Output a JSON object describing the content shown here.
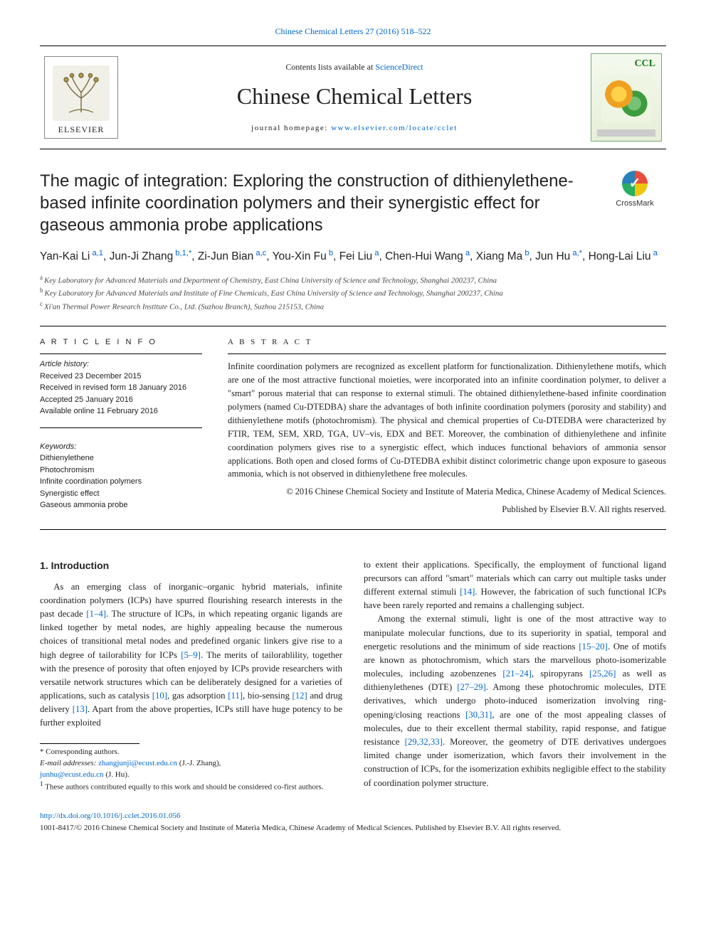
{
  "top_link": {
    "prefix": "",
    "journal": "Chinese Chemical Letters 27 (2016) 518–522"
  },
  "masthead": {
    "contents_prefix": "Contents lists available at ",
    "contents_link": "ScienceDirect",
    "journal_name": "Chinese Chemical Letters",
    "homepage_prefix": "journal homepage: ",
    "homepage_url": "www.elsevier.com/locate/cclet",
    "elsevier_word": "ELSEVIER",
    "cover_label": "CCL"
  },
  "crossmark_label": "CrossMark",
  "article": {
    "title": "The magic of integration: Exploring the construction of dithienylethene-based infinite coordination polymers and their synergistic effect for gaseous ammonia probe applications",
    "authors_html": "Yan-Kai Li<span class='affil-sup'> a,1</span>, Jun-Ji Zhang<span class='affil-sup'> b,1,*</span>, Zi-Jun Bian<span class='affil-sup'> a,c</span>, You-Xin Fu<span class='affil-sup'> b</span>, Fei Liu<span class='affil-sup'> a</span>, Chen-Hui Wang<span class='affil-sup'> a</span>, Xiang Ma<span class='affil-sup'> b</span>, Jun Hu<span class='affil-sup'> a,*</span>, Hong-Lai Liu<span class='affil-sup'> a</span>",
    "affiliations": [
      {
        "sup": "a",
        "text": "Key Laboratory for Advanced Materials and Department of Chemistry, East China University of Science and Technology, Shanghai 200237, China"
      },
      {
        "sup": "b",
        "text": "Key Laboratory for Advanced Materials and Institute of Fine Chemicals, East China University of Science and Technology, Shanghai 200237, China"
      },
      {
        "sup": "c",
        "text": "Xi'an Thermal Power Research Institute Co., Ltd. (Suzhou Branch), Suzhou 215153, China"
      }
    ]
  },
  "info": {
    "heading": "A R T I C L E   I N F O",
    "history_label": "Article history:",
    "history": [
      "Received 23 December 2015",
      "Received in revised form 18 January 2016",
      "Accepted 25 January 2016",
      "Available online 11 February 2016"
    ],
    "keywords_label": "Keywords:",
    "keywords": [
      "Dithienylethene",
      "Photochromism",
      "Infinite coordination polymers",
      "Synergistic effect",
      "Gaseous ammonia probe"
    ]
  },
  "abstract": {
    "heading": "A B S T R A C T",
    "text": "Infinite coordination polymers are recognized as excellent platform for functionalization. Dithienylethene motifs, which are one of the most attractive functional moieties, were incorporated into an infinite coordination polymer, to deliver a \"smart\" porous material that can response to external stimuli. The obtained dithienylethene-based infinite coordination polymers (named Cu-DTEDBA) share the advantages of both infinite coordination polymers (porosity and stability) and dithienylethene motifs (photochromism). The physical and chemical properties of Cu-DTEDBA were characterized by FTIR, TEM, SEM, XRD, TGA, UV–vis, EDX and BET. Moreover, the combination of dithienylethene and infinite coordination polymers gives rise to a synergistic effect, which induces functional behaviors of ammonia sensor applications. Both open and closed forms of Cu-DTEDBA exhibit distinct colorimetric change upon exposure to gaseous ammonia, which is not observed in dithienylethene free molecules.",
    "copyright1": "© 2016 Chinese Chemical Society and Institute of Materia Medica, Chinese Academy of Medical Sciences.",
    "copyright2": "Published by Elsevier B.V. All rights reserved."
  },
  "body": {
    "intro_heading": "1. Introduction",
    "p1_pre": "As an emerging class of inorganic–organic hybrid materials, infinite coordination polymers (ICPs) have spurred flourishing research interests in the past decade ",
    "p1_ref1": "[1–4]",
    "p1_mid": ". The structure of ICPs, in which repeating organic ligands are linked together by metal nodes, are highly appealing because the numerous choices of transitional metal nodes and predefined organic linkers give rise to a high degree of tailorability for ICPs ",
    "p1_ref2": "[5–9]",
    "p1_mid2": ". The merits of tailorablility, together with the presence of porosity that often enjoyed by ICPs provide researchers with versatile network structures which can be deliberately designed for a varieties of applications, such as catalysis ",
    "p1_ref3": "[10]",
    "p1_mid3": ", gas adsorption ",
    "p1_ref4": "[11]",
    "p1_mid4": ", bio-sensing ",
    "p1_ref5": "[12]",
    "p1_mid5": " and drug delivery ",
    "p1_ref6": "[13]",
    "p1_end": ". Apart from the above properties, ICPs still have huge potency to be further exploited",
    "corr_label": "* Corresponding authors.",
    "email_label": "E-mail addresses:",
    "email1": "zhangjunji@ecust.edu.cn",
    "email1_name": " (J.-J. Zhang),",
    "email2": "junhu@ecust.edu.cn",
    "email2_name": " (J. Hu).",
    "note1": "1",
    "note1_text": " These authors contributed equally to this work and should be considered co-first authors.",
    "p2_pre": "to extent their applications. Specifically, the employment of functional ligand precursors can afford \"smart\" materials which can carry out multiple tasks under different external stimuli ",
    "p2_ref1": "[14]",
    "p2_end": ". However, the fabrication of such functional ICPs have been rarely reported and remains a challenging subject.",
    "p3_pre": "Among the external stimuli, light is one of the most attractive way to manipulate molecular functions, due to its superiority in spatial, temporal and energetic resolutions and the minimum of side reactions ",
    "p3_ref1": "[15–20]",
    "p3_mid1": ". One of motifs are known as photochromism, which stars the marvellous photo-isomerizable molecules, including azobenzenes ",
    "p3_ref2": "[21–24]",
    "p3_mid2": ", spiropyrans ",
    "p3_ref3": "[25,26]",
    "p3_mid3": " as well as dithienylethenes (DTE) ",
    "p3_ref4": "[27–29]",
    "p3_mid4": ". Among these photochromic molecules, DTE derivatives, which undergo photo-induced isomerization involving ring-opening/closing reactions ",
    "p3_ref5": "[30,31]",
    "p3_mid5": ", are one of the most appealing classes of molecules, due to their excellent thermal stability, rapid response, and fatigue resistance ",
    "p3_ref6": "[29,32,33]",
    "p3_end": ". Moreover, the geometry of DTE derivatives undergoes limited change under isomerization, which favors their involvement in the construction of ICPs, for the isomerization exhibits negligible effect to the stability of coordination polymer structure."
  },
  "footer": {
    "doi": "http://dx.doi.org/10.1016/j.cclet.2016.01.056",
    "issn_copy": "1001-8417/© 2016 Chinese Chemical Society and Institute of Materia Medica, Chinese Academy of Medical Sciences. Published by Elsevier B.V. All rights reserved."
  },
  "colors": {
    "link": "#0066cc",
    "text": "#222222",
    "rule": "#000000"
  }
}
